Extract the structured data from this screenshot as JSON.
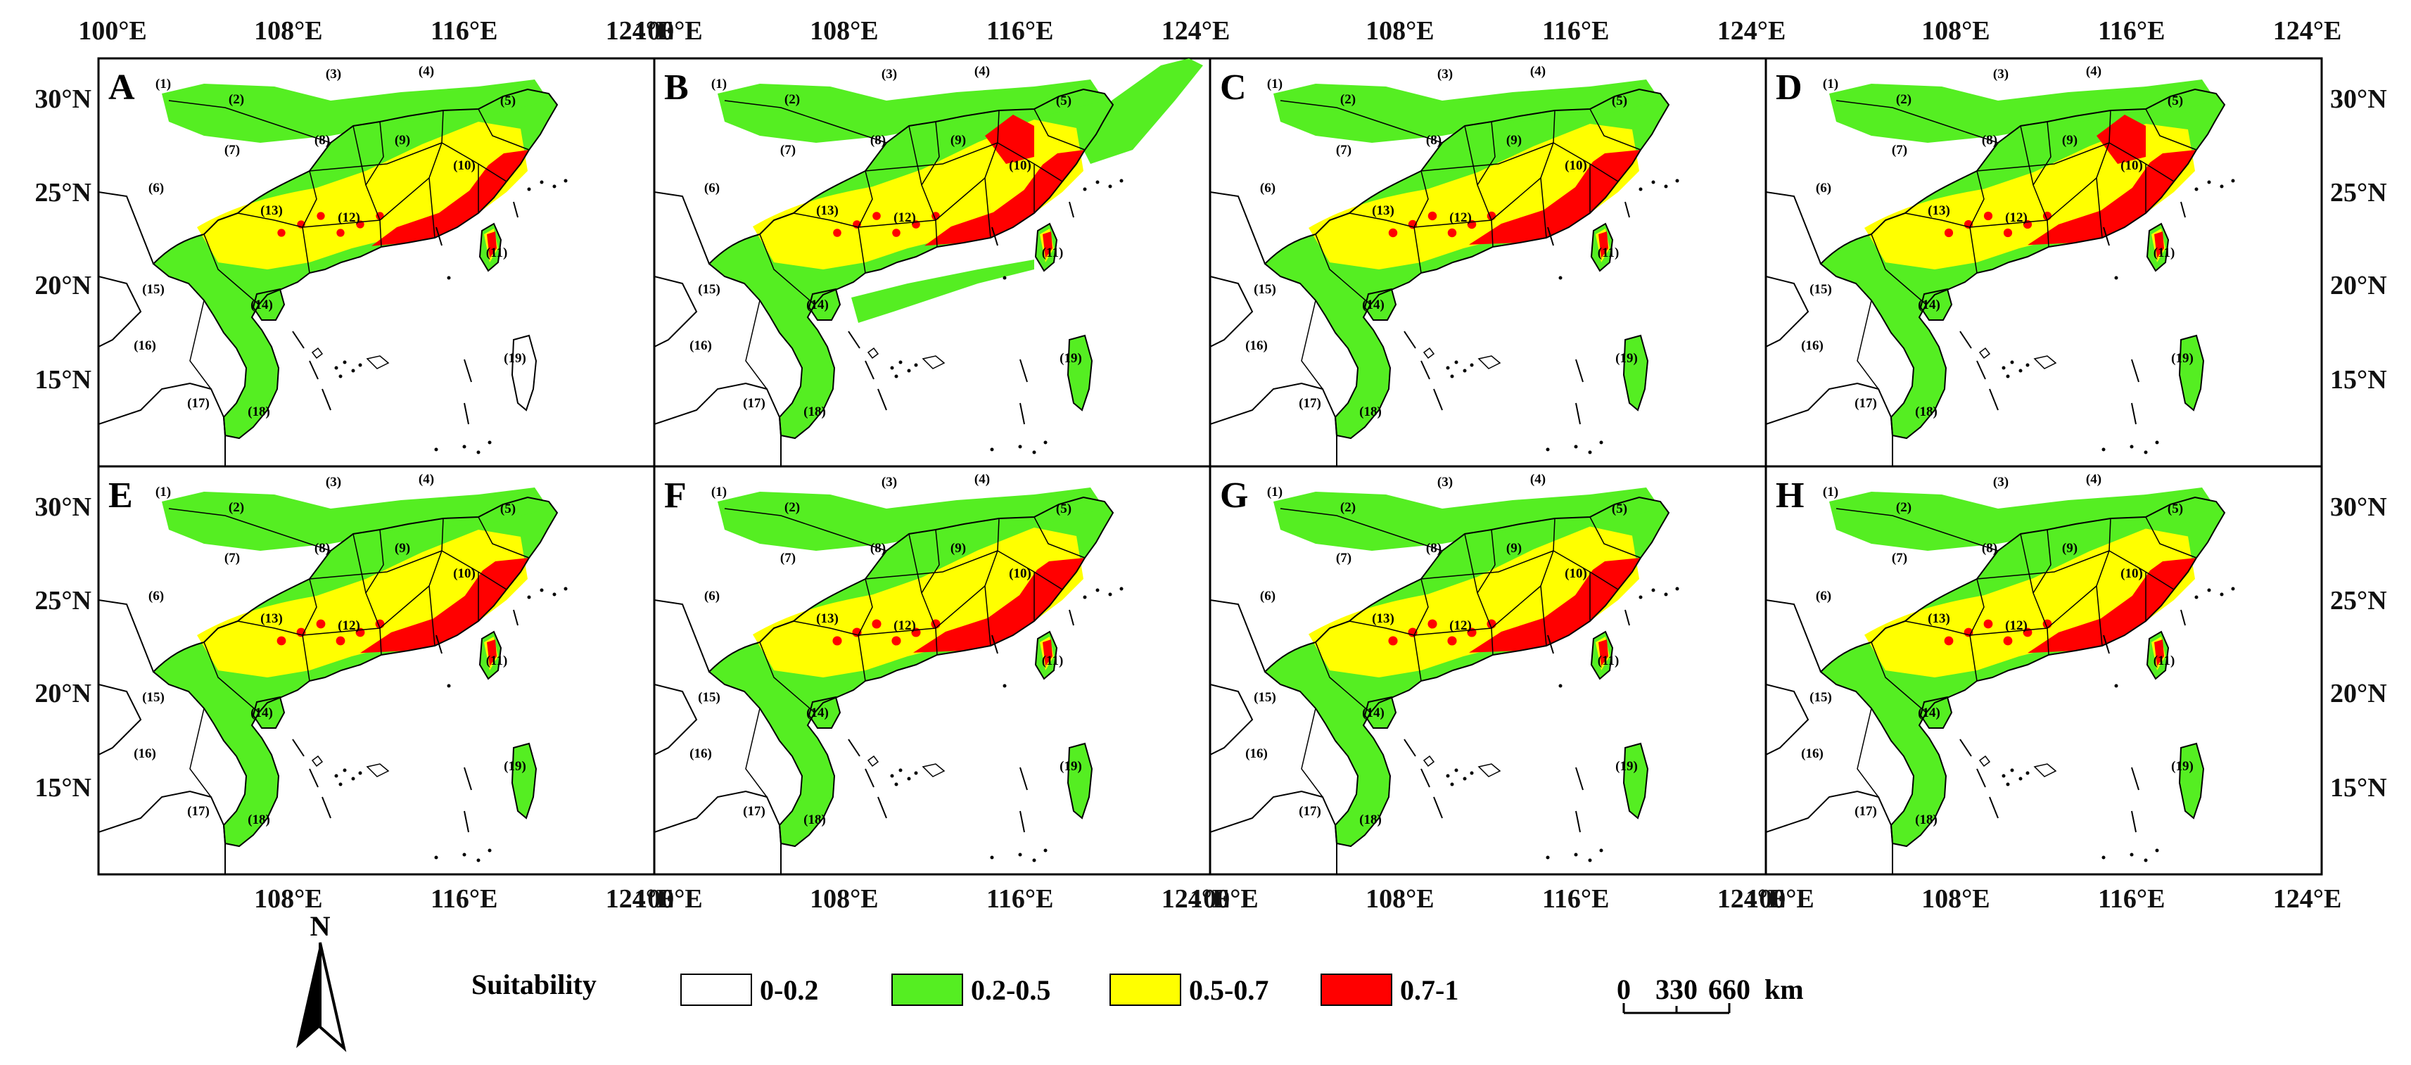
{
  "figure": {
    "longitude_ticks": [
      "100°E",
      "108°E",
      "116°E",
      "124°E"
    ],
    "latitude_ticks": [
      "30°N",
      "25°N",
      "20°N",
      "15°N"
    ],
    "top_longitude_labels": [
      [
        "100°E",
        "108°E",
        "116°E",
        "124°E"
      ],
      [
        "100°E",
        "108°E",
        "116°E",
        "124°E"
      ],
      [
        "108°E",
        "116°E",
        "124°E"
      ],
      [
        "108°E",
        "116°E",
        "124°E"
      ]
    ],
    "bottom_longitude_labels": [
      [
        "108°E",
        "116°E",
        "124°E"
      ],
      [
        "100°E",
        "108°E",
        "116°E",
        "124°E"
      ],
      [
        "100°E",
        "108°E",
        "116°E",
        "124°E"
      ],
      [
        "100°E",
        "108°E",
        "116°E",
        "124°E"
      ]
    ]
  },
  "panels": [
    {
      "letter": "A",
      "red": 0.8,
      "yellow": 1.0,
      "greenExt": 0.0,
      "scale": 0.55
    },
    {
      "letter": "B",
      "red": 0.9,
      "yellow": 1.1,
      "greenExt": 1.0,
      "scale": 0.6
    },
    {
      "letter": "C",
      "red": 1.3,
      "yellow": 0.9,
      "greenExt": 0.3,
      "scale": 0.75
    },
    {
      "letter": "D",
      "red": 1.2,
      "yellow": 0.9,
      "greenExt": 0.3,
      "scale": 0.7
    },
    {
      "letter": "E",
      "red": 1.2,
      "yellow": 1.0,
      "greenExt": 0.3,
      "scale": 0.8
    },
    {
      "letter": "F",
      "red": 1.3,
      "yellow": 1.1,
      "greenExt": 0.3,
      "scale": 0.85
    },
    {
      "letter": "G",
      "red": 1.3,
      "yellow": 1.15,
      "greenExt": 0.3,
      "scale": 0.85
    },
    {
      "letter": "H",
      "red": 1.2,
      "yellow": 1.05,
      "greenExt": 0.3,
      "scale": 0.8
    }
  ],
  "regions": [
    "(1)",
    "(2)",
    "(3)",
    "(4)",
    "(5)",
    "(6)",
    "(7)",
    "(8)",
    "(9)",
    "(10)",
    "(11)",
    "(12)",
    "(13)",
    "(14)",
    "(15)",
    "(16)",
    "(17)",
    "(18)",
    "(19)"
  ],
  "legend": {
    "title": "Suitability",
    "classes": [
      {
        "label": "0-0.2",
        "color": "#ffffff"
      },
      {
        "label": "0.2-0.5",
        "color": "#55ee22"
      },
      {
        "label": "0.5-0.7",
        "color": "#ffff00"
      },
      {
        "label": "0.7-1",
        "color": "#ff0000"
      }
    ]
  },
  "scale_bar": {
    "labels": [
      "0",
      "330",
      "660"
    ],
    "unit": "km"
  },
  "north_arrow": {
    "label": "N"
  },
  "colors": {
    "green": "#55ee22",
    "yellow": "#ffff00",
    "red": "#ff0000",
    "border": "#000000"
  }
}
